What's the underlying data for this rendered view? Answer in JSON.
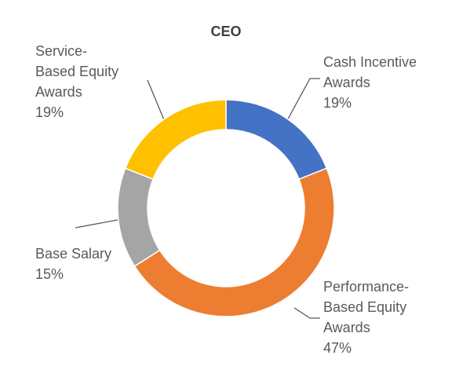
{
  "chart_data": {
    "type": "donut",
    "title": "CEO",
    "categories": [
      "Cash Incentive Awards",
      "Performance-Based Equity Awards",
      "Base Salary",
      "Service-Based Equity Awards"
    ],
    "values": [
      19,
      47,
      15,
      19
    ],
    "value_labels": [
      "19%",
      "47%",
      "15%",
      "19%"
    ],
    "colors": [
      "#4472c4",
      "#ed7d31",
      "#a5a5a5",
      "#ffc000"
    ]
  }
}
